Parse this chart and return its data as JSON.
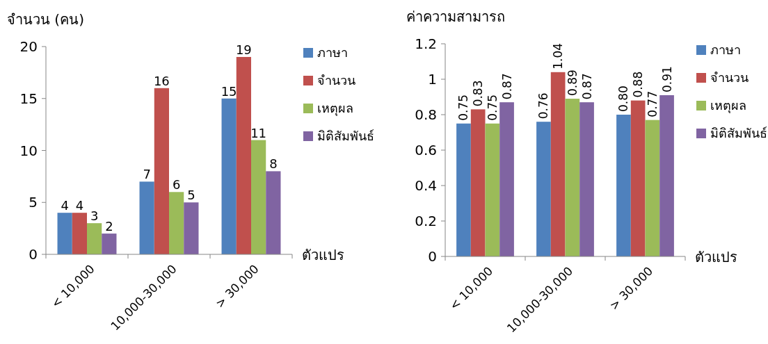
{
  "chart_data": [
    {
      "type": "bar",
      "ylabel": "จำนวน (คน)",
      "xlabel": "ตัวแปร",
      "categories": [
        "< 10,000",
        "10,000-30,000",
        "> 30,000"
      ],
      "ylim": [
        0,
        20
      ],
      "yticks": [
        0,
        5,
        10,
        15,
        20
      ],
      "legend": "right",
      "data_labels": true,
      "series": [
        {
          "name": "ภาษา",
          "color": "#4f81bd",
          "values": [
            4,
            7,
            15
          ]
        },
        {
          "name": "จำนวน",
          "color": "#c0504d",
          "values": [
            4,
            16,
            19
          ]
        },
        {
          "name": "เหตุผล",
          "color": "#9bbb59",
          "values": [
            3,
            6,
            11
          ]
        },
        {
          "name": "มิติสัมพันธ์",
          "color": "#8064a2",
          "values": [
            2,
            5,
            8
          ]
        }
      ]
    },
    {
      "type": "bar",
      "ylabel": "ค่าความสามารถ",
      "xlabel": "ตัวแปร",
      "categories": [
        "< 10,000",
        "10,000-30,000",
        "> 30,000"
      ],
      "ylim": [
        0,
        1.2
      ],
      "yticks": [
        0,
        0.2,
        0.4,
        0.6,
        0.8,
        1,
        1.2
      ],
      "legend": "right",
      "series": [
        {
          "name": "ภาษา",
          "color": "#4f81bd",
          "values": [
            0.75,
            0.76,
            0.8
          ],
          "value_labels": [
            "0.75",
            "0.76",
            "0.80"
          ]
        },
        {
          "name": "จำนวน",
          "color": "#c0504d",
          "values": [
            0.83,
            1.04,
            0.88
          ],
          "value_labels": [
            "0.83",
            "1.04",
            "0.88"
          ]
        },
        {
          "name": "เหตุผล",
          "color": "#9bbb59",
          "values": [
            0.75,
            0.89,
            0.77
          ],
          "value_labels": [
            "0.75",
            "0.89",
            "0.77"
          ]
        },
        {
          "name": "มิติสัมพันธ์",
          "color": "#8064a2",
          "values": [
            0.87,
            0.87,
            0.91
          ],
          "value_labels": [
            "0.87",
            "0.87",
            "0.91"
          ]
        }
      ]
    }
  ]
}
